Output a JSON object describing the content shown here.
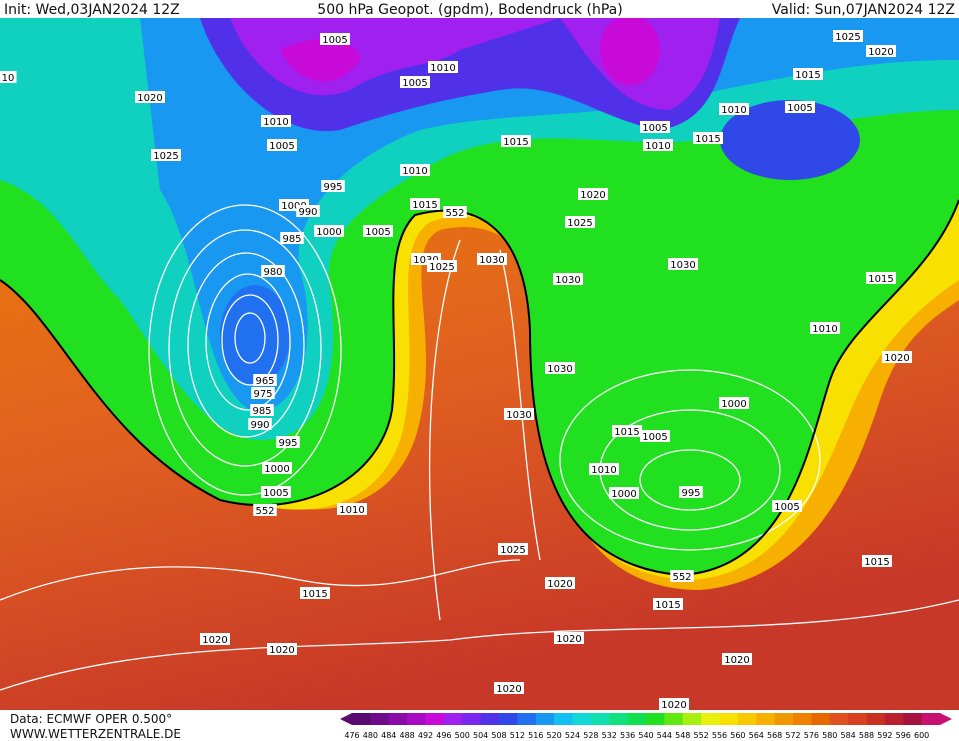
{
  "header": {
    "init": "Init: Wed,03JAN2024 12Z",
    "title": "500 hPa Geopot. (gpdm), Bodendruck (hPa)",
    "valid": "Valid: Sun,07JAN2024 12Z"
  },
  "isobar_labels": [
    10,
    1005,
    1005,
    1010,
    1020,
    1010,
    1005,
    1025,
    995,
    1010,
    1015,
    1000,
    990,
    552,
    985,
    1000,
    1005,
    980,
    1030,
    1025,
    1030,
    965,
    975,
    985,
    990,
    995,
    1000,
    1005,
    552,
    1010,
    1015,
    1020,
    1020,
    1025,
    1020,
    1015,
    1010,
    1005,
    1005,
    1010,
    1015,
    1015,
    1020,
    1025,
    1030,
    1030,
    1015,
    1010,
    1020,
    1030,
    1030,
    1000,
    1015,
    1005,
    1010,
    1000,
    995,
    1005,
    1025,
    1020,
    552,
    1015,
    1015,
    1020,
    1020,
    1020,
    1020
  ],
  "legend": {
    "labels": [
      476,
      480,
      484,
      488,
      492,
      496,
      500,
      504,
      508,
      512,
      516,
      520,
      524,
      528,
      532,
      536,
      540,
      544,
      548,
      552,
      556,
      560,
      564,
      568,
      572,
      576,
      580,
      584,
      588,
      592,
      596,
      600
    ],
    "colors": [
      "#5a0a6e",
      "#6e0a8c",
      "#8a0aa8",
      "#a80ac4",
      "#c80ad8",
      "#a020f0",
      "#7a28f0",
      "#5030e8",
      "#3048e8",
      "#2070f0",
      "#1898f0",
      "#10c0f0",
      "#10d8d8",
      "#10e0b0",
      "#10e080",
      "#10e050",
      "#20e020",
      "#60e810",
      "#a8f010",
      "#e8f010",
      "#f8e000",
      "#f8c800",
      "#f8b000",
      "#f09800",
      "#f08000",
      "#e86800",
      "#e05020",
      "#d84020",
      "#c83020",
      "#b82030",
      "#a81040",
      "#c81070"
    ]
  },
  "footer": {
    "source": "Data: ECMWF OPER 0.500°",
    "site": "WWW.WETTERZENTRALE.DE"
  }
}
